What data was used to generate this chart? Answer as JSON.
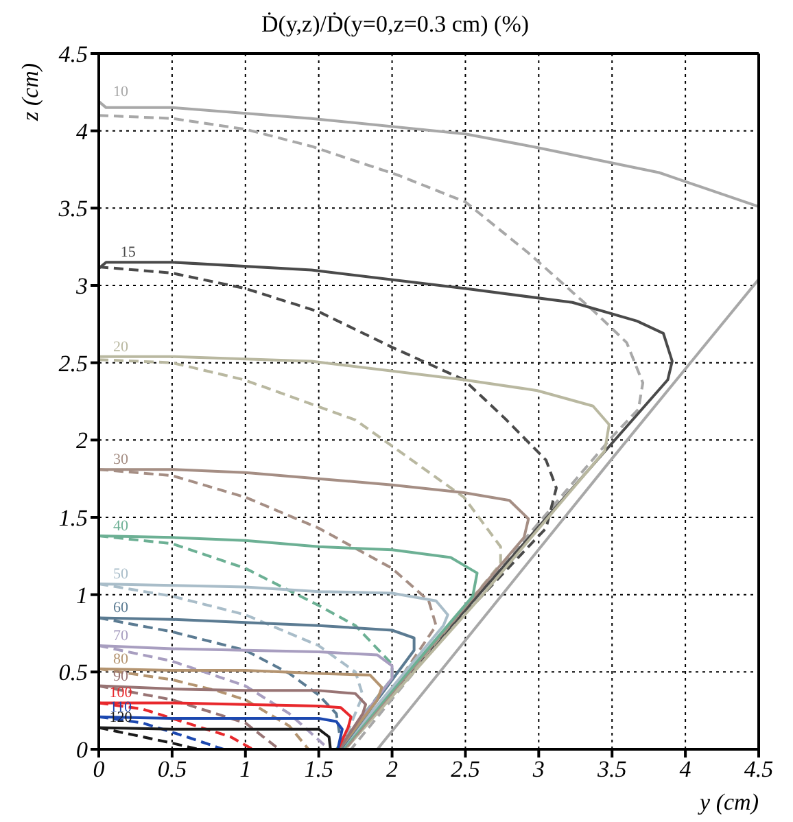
{
  "chart_data": {
    "type": "line",
    "title": "Ḋ(y,z)/Ḋ(y=0,z=0.3 cm) (%)",
    "xlabel": "y (cm)",
    "ylabel": "z (cm)",
    "xlim": [
      0,
      4.5
    ],
    "ylim": [
      0,
      4.5
    ],
    "xticks": [
      0,
      0.5,
      1,
      1.5,
      2,
      2.5,
      3,
      3.5,
      4,
      4.5
    ],
    "yticks": [
      0,
      0.5,
      1,
      1.5,
      2,
      2.5,
      3,
      3.5,
      4,
      4.5
    ],
    "grid": true,
    "marker": "none",
    "series": [
      {
        "name": "10",
        "color": "#a8a8a8",
        "line_style": "solid",
        "x": [
          0,
          0.05,
          0.5,
          1.45,
          2.5,
          3.0,
          3.82,
          4.5,
          4.5,
          3.5,
          2.7,
          1.9
        ],
        "values": [
          4.19,
          4.15,
          4.15,
          4.08,
          3.98,
          3.89,
          3.73,
          3.51,
          3.04,
          1.88,
          0.94,
          0
        ]
      },
      {
        "color": "#a8a8a8",
        "line_style": "dashed",
        "x": [
          0,
          0.5,
          1.0,
          1.45,
          2.05,
          2.5,
          2.93,
          3.38,
          3.6,
          3.71,
          3.68,
          3.5,
          2.6,
          1.72
        ],
        "values": [
          4.1,
          4.08,
          4.01,
          3.9,
          3.71,
          3.54,
          3.21,
          2.83,
          2.63,
          2.37,
          2.2,
          2.02,
          1.02,
          0
        ]
      },
      {
        "name": "15",
        "color": "#4a4a4a",
        "line_style": "solid",
        "x": [
          0,
          0.05,
          0.5,
          1.45,
          2.5,
          3.23,
          3.67,
          3.85,
          3.91,
          3.88,
          3.0,
          1.66
        ],
        "values": [
          3.11,
          3.15,
          3.15,
          3.1,
          2.98,
          2.89,
          2.77,
          2.69,
          2.51,
          2.39,
          1.44,
          0
        ]
      },
      {
        "color": "#4a4a4a",
        "line_style": "dashed",
        "x": [
          0,
          0.5,
          1.0,
          1.5,
          2.0,
          2.49,
          2.78,
          3.05,
          3.12,
          3.05,
          2.4,
          1.66
        ],
        "values": [
          3.12,
          3.08,
          2.98,
          2.83,
          2.6,
          2.39,
          2.13,
          1.87,
          1.69,
          1.43,
          0.78,
          0
        ]
      },
      {
        "name": "20",
        "color": "#b9b8a0",
        "line_style": "solid",
        "x": [
          0,
          0.5,
          1.45,
          2.49,
          2.99,
          3.37,
          3.48,
          3.45,
          2.6,
          1.68
        ],
        "values": [
          2.54,
          2.54,
          2.51,
          2.39,
          2.32,
          2.22,
          2.1,
          1.93,
          0.98,
          0
        ]
      },
      {
        "color": "#b9b8a0",
        "line_style": "dashed",
        "x": [
          0,
          0.5,
          0.99,
          1.75,
          2.49,
          2.74,
          2.74,
          2.2,
          1.68
        ],
        "values": [
          2.52,
          2.5,
          2.39,
          2.13,
          1.63,
          1.31,
          1.2,
          0.58,
          0
        ]
      },
      {
        "name": "30",
        "color": "#a58e84",
        "line_style": "solid",
        "x": [
          0,
          0.5,
          1.0,
          1.5,
          2.0,
          2.49,
          2.8,
          2.93,
          2.9,
          2.3,
          1.67
        ],
        "values": [
          1.81,
          1.81,
          1.79,
          1.75,
          1.71,
          1.66,
          1.61,
          1.49,
          1.37,
          0.7,
          0
        ]
      },
      {
        "color": "#a58e84",
        "line_style": "dashed",
        "x": [
          0,
          0.5,
          1.0,
          1.5,
          2.0,
          2.25,
          2.3,
          2.0,
          1.68
        ],
        "values": [
          1.81,
          1.77,
          1.63,
          1.43,
          1.17,
          0.96,
          0.8,
          0.38,
          0
        ]
      },
      {
        "name": "40",
        "color": "#6cb094",
        "line_style": "solid",
        "x": [
          0,
          0.5,
          1.0,
          1.5,
          2.0,
          2.4,
          2.58,
          2.55,
          2.1,
          1.66
        ],
        "values": [
          1.38,
          1.37,
          1.35,
          1.31,
          1.29,
          1.24,
          1.14,
          0.99,
          0.49,
          0
        ]
      },
      {
        "color": "#6cb094",
        "line_style": "dashed",
        "x": [
          0,
          0.5,
          1.0,
          1.5,
          1.75,
          2.0,
          2.0,
          1.62
        ],
        "values": [
          1.38,
          1.33,
          1.17,
          0.93,
          0.8,
          0.55,
          0.46,
          0
        ]
      },
      {
        "name": "50",
        "color": "#a9bdc9",
        "line_style": "solid",
        "x": [
          0,
          0.5,
          1.0,
          1.5,
          2.0,
          2.3,
          2.38,
          2.35,
          1.65
        ],
        "values": [
          1.07,
          1.06,
          1.05,
          1.02,
          1.01,
          0.96,
          0.87,
          0.8,
          0
        ]
      },
      {
        "color": "#a9bdc9",
        "line_style": "dashed",
        "x": [
          0,
          0.5,
          1.0,
          1.5,
          1.75,
          1.8,
          1.65
        ],
        "values": [
          1.07,
          0.99,
          0.87,
          0.67,
          0.5,
          0.35,
          0
        ]
      },
      {
        "name": "60",
        "color": "#5b7b92",
        "line_style": "solid",
        "x": [
          0,
          0.5,
          1.0,
          1.5,
          2.0,
          2.15,
          2.15,
          1.65
        ],
        "values": [
          0.85,
          0.84,
          0.82,
          0.8,
          0.77,
          0.72,
          0.64,
          0
        ]
      },
      {
        "color": "#5b7b92",
        "line_style": "dashed",
        "x": [
          0,
          0.5,
          1.0,
          1.3,
          1.5,
          1.62,
          1.65,
          1.64
        ],
        "values": [
          0.85,
          0.76,
          0.64,
          0.49,
          0.35,
          0.23,
          0.05,
          0
        ]
      },
      {
        "name": "70",
        "color": "#a89ec0",
        "line_style": "solid",
        "x": [
          0,
          0.5,
          1.0,
          1.5,
          1.9,
          2.0,
          2.0,
          1.63
        ],
        "values": [
          0.67,
          0.65,
          0.64,
          0.63,
          0.61,
          0.54,
          0.46,
          0
        ]
      },
      {
        "color": "#a89ec0",
        "line_style": "dashed",
        "x": [
          0,
          0.5,
          1.0,
          1.3,
          1.57
        ],
        "values": [
          0.67,
          0.57,
          0.41,
          0.23,
          0
        ]
      },
      {
        "name": "80",
        "color": "#b49470",
        "line_style": "solid",
        "x": [
          0,
          0.5,
          1.0,
          1.5,
          1.85,
          1.93,
          1.9,
          1.64
        ],
        "values": [
          0.52,
          0.51,
          0.51,
          0.49,
          0.48,
          0.4,
          0.32,
          0
        ]
      },
      {
        "color": "#b49470",
        "line_style": "dashed",
        "x": [
          0,
          0.5,
          0.8,
          1.0,
          1.3,
          1.43
        ],
        "values": [
          0.52,
          0.45,
          0.38,
          0.32,
          0.15,
          0
        ]
      },
      {
        "name": "90",
        "color": "#987474",
        "line_style": "solid",
        "x": [
          0,
          0.5,
          1.0,
          1.5,
          1.75,
          1.82,
          1.8,
          1.64
        ],
        "values": [
          0.41,
          0.39,
          0.38,
          0.38,
          0.36,
          0.29,
          0.23,
          0
        ]
      },
      {
        "color": "#987474",
        "line_style": "dashed",
        "x": [
          0,
          0.5,
          0.8,
          1.0,
          1.23
        ],
        "values": [
          0.41,
          0.32,
          0.23,
          0.17,
          0
        ]
      },
      {
        "name": "100",
        "color": "#e8282c",
        "line_style": "solid",
        "x": [
          0,
          0.5,
          1.0,
          1.5,
          1.65,
          1.72,
          1.7,
          1.63
        ],
        "values": [
          0.3,
          0.3,
          0.29,
          0.28,
          0.27,
          0.21,
          0.14,
          0
        ]
      },
      {
        "color": "#e8282c",
        "line_style": "dashed",
        "x": [
          0,
          0.3,
          0.6,
          0.9,
          1.05
        ],
        "values": [
          0.3,
          0.26,
          0.17,
          0.08,
          0
        ]
      },
      {
        "name": "110",
        "color": "#1c48b0",
        "line_style": "solid",
        "x": [
          0,
          0.5,
          1.0,
          1.5,
          1.62,
          1.66,
          1.63
        ],
        "values": [
          0.21,
          0.2,
          0.2,
          0.2,
          0.18,
          0.13,
          0
        ]
      },
      {
        "color": "#1c48b0",
        "line_style": "dashed",
        "x": [
          0,
          0.3,
          0.6,
          0.85
        ],
        "values": [
          0.21,
          0.17,
          0.08,
          0
        ]
      },
      {
        "name": "120",
        "color": "#1a1a1a",
        "line_style": "solid",
        "x": [
          0,
          0.5,
          1.0,
          1.5,
          1.57,
          1.58
        ],
        "values": [
          0.14,
          0.13,
          0.13,
          0.13,
          0.08,
          0
        ]
      },
      {
        "color": "#1a1a1a",
        "line_style": "dashed",
        "x": [
          0,
          0.3,
          0.5,
          0.68
        ],
        "values": [
          0.14,
          0.08,
          0.04,
          0
        ]
      }
    ]
  }
}
